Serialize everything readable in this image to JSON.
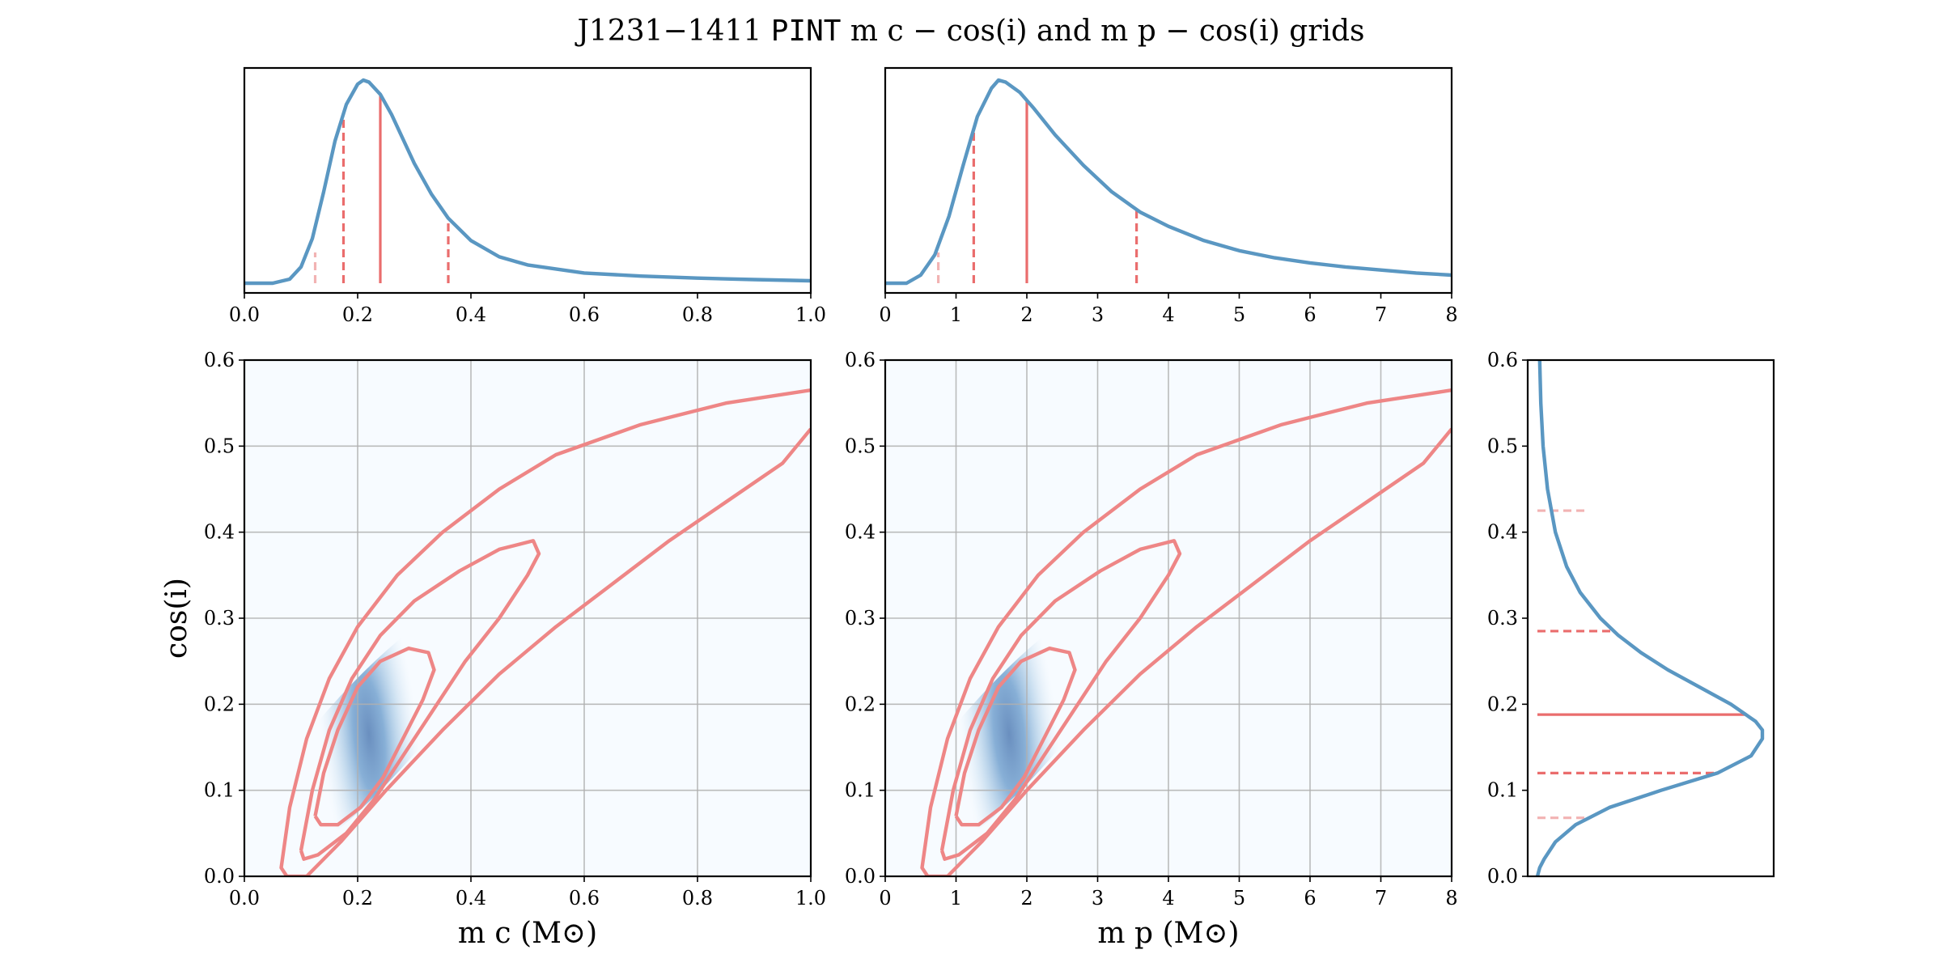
{
  "figure": {
    "title_prefix": "J1231−1411 ",
    "title_mono": "PINT",
    "title_suffix": " m c − cos(i) and m p − cos(i) grids"
  },
  "colors": {
    "pdf_line": "#5a97c2",
    "contour": "#ee8686",
    "quantile": "#ea6d6d",
    "quantile_faint": "#f2b3b3",
    "density_low": "#f7fbff",
    "density_high": "#6a96c4"
  },
  "chart_data": [
    {
      "id": "mc_marginal",
      "type": "line",
      "xlim": [
        0,
        1
      ],
      "xticks": [
        "0.0",
        "0.2",
        "0.4",
        "0.6",
        "0.8",
        "1.0"
      ],
      "x": [
        0.0,
        0.05,
        0.08,
        0.1,
        0.12,
        0.14,
        0.16,
        0.18,
        0.2,
        0.21,
        0.22,
        0.24,
        0.26,
        0.28,
        0.3,
        0.33,
        0.36,
        0.4,
        0.45,
        0.5,
        0.6,
        0.7,
        0.8,
        0.9,
        1.0
      ],
      "y": [
        0.0,
        0.0,
        0.02,
        0.08,
        0.22,
        0.45,
        0.7,
        0.88,
        0.98,
        1.0,
        0.99,
        0.93,
        0.83,
        0.71,
        0.59,
        0.44,
        0.32,
        0.21,
        0.13,
        0.09,
        0.05,
        0.035,
        0.025,
        0.018,
        0.012
      ],
      "quantiles": [
        {
          "value": 0.125,
          "style": "faint"
        },
        {
          "value": 0.175,
          "style": "dashed"
        },
        {
          "value": 0.24,
          "style": "solid"
        },
        {
          "value": 0.36,
          "style": "dashed"
        }
      ]
    },
    {
      "id": "mp_marginal",
      "type": "line",
      "xlim": [
        0,
        8
      ],
      "xticks": [
        "0",
        "1",
        "2",
        "3",
        "4",
        "5",
        "6",
        "7",
        "8"
      ],
      "x": [
        0.0,
        0.3,
        0.5,
        0.7,
        0.9,
        1.1,
        1.3,
        1.5,
        1.6,
        1.7,
        1.9,
        2.1,
        2.4,
        2.8,
        3.2,
        3.6,
        4.0,
        4.5,
        5.0,
        5.5,
        6.0,
        6.5,
        7.0,
        7.5,
        8.0
      ],
      "y": [
        0.0,
        0.0,
        0.04,
        0.14,
        0.33,
        0.58,
        0.82,
        0.96,
        1.0,
        0.99,
        0.94,
        0.86,
        0.73,
        0.58,
        0.45,
        0.35,
        0.28,
        0.21,
        0.16,
        0.125,
        0.1,
        0.08,
        0.065,
        0.05,
        0.04
      ],
      "quantiles": [
        {
          "value": 0.75,
          "style": "faint"
        },
        {
          "value": 1.25,
          "style": "dashed"
        },
        {
          "value": 2.0,
          "style": "solid"
        },
        {
          "value": 3.55,
          "style": "dashed"
        }
      ]
    },
    {
      "id": "mc_cosi_grid",
      "type": "heatmap",
      "xlabel": "m c (M⊙)",
      "ylabel": "cos(i)",
      "xlim": [
        0,
        1
      ],
      "ylim": [
        0,
        0.6
      ],
      "xticks": [
        "0.0",
        "0.2",
        "0.4",
        "0.6",
        "0.8",
        "1.0"
      ],
      "yticks": [
        "0.0",
        "0.1",
        "0.2",
        "0.3",
        "0.4",
        "0.5",
        "0.6"
      ],
      "density_peak": {
        "x": 0.22,
        "y": 0.165
      },
      "contours": [
        [
          [
            0.125,
            0.07
          ],
          [
            0.14,
            0.12
          ],
          [
            0.165,
            0.17
          ],
          [
            0.2,
            0.22
          ],
          [
            0.24,
            0.25
          ],
          [
            0.29,
            0.265
          ],
          [
            0.325,
            0.26
          ],
          [
            0.335,
            0.24
          ],
          [
            0.315,
            0.205
          ],
          [
            0.28,
            0.16
          ],
          [
            0.245,
            0.115
          ],
          [
            0.205,
            0.08
          ],
          [
            0.165,
            0.06
          ],
          [
            0.135,
            0.06
          ],
          [
            0.125,
            0.07
          ]
        ],
        [
          [
            0.1,
            0.03
          ],
          [
            0.12,
            0.1
          ],
          [
            0.15,
            0.17
          ],
          [
            0.19,
            0.23
          ],
          [
            0.24,
            0.28
          ],
          [
            0.3,
            0.32
          ],
          [
            0.38,
            0.355
          ],
          [
            0.45,
            0.38
          ],
          [
            0.51,
            0.39
          ],
          [
            0.52,
            0.375
          ],
          [
            0.5,
            0.35
          ],
          [
            0.45,
            0.3
          ],
          [
            0.39,
            0.25
          ],
          [
            0.33,
            0.19
          ],
          [
            0.28,
            0.14
          ],
          [
            0.23,
            0.09
          ],
          [
            0.18,
            0.05
          ],
          [
            0.13,
            0.025
          ],
          [
            0.105,
            0.02
          ],
          [
            0.1,
            0.03
          ]
        ],
        [
          [
            0.075,
            0.0
          ],
          [
            0.065,
            0.01
          ],
          [
            0.08,
            0.08
          ],
          [
            0.11,
            0.16
          ],
          [
            0.15,
            0.23
          ],
          [
            0.2,
            0.29
          ],
          [
            0.27,
            0.35
          ],
          [
            0.35,
            0.4
          ],
          [
            0.45,
            0.45
          ],
          [
            0.55,
            0.49
          ],
          [
            0.7,
            0.525
          ],
          [
            0.85,
            0.55
          ],
          [
            1.0,
            0.565
          ]
        ],
        [
          [
            0.075,
            0.0
          ],
          [
            0.11,
            0.0
          ],
          [
            0.17,
            0.04
          ],
          [
            0.25,
            0.1
          ],
          [
            0.35,
            0.17
          ],
          [
            0.45,
            0.235
          ],
          [
            0.55,
            0.29
          ],
          [
            0.65,
            0.34
          ],
          [
            0.75,
            0.39
          ],
          [
            0.85,
            0.435
          ],
          [
            0.95,
            0.48
          ],
          [
            1.0,
            0.52
          ]
        ]
      ]
    },
    {
      "id": "mp_cosi_grid",
      "type": "heatmap",
      "xlabel": "m p (M⊙)",
      "xlim": [
        0,
        8
      ],
      "ylim": [
        0,
        0.6
      ],
      "xticks": [
        "0",
        "1",
        "2",
        "3",
        "4",
        "5",
        "6",
        "7",
        "8"
      ],
      "yticks": [
        "0.0",
        "0.1",
        "0.2",
        "0.3",
        "0.4",
        "0.5",
        "0.6"
      ],
      "density_peak": {
        "x": 1.75,
        "y": 0.165
      },
      "contours": [
        [
          [
            1.0,
            0.07
          ],
          [
            1.12,
            0.12
          ],
          [
            1.32,
            0.17
          ],
          [
            1.6,
            0.22
          ],
          [
            1.92,
            0.25
          ],
          [
            2.32,
            0.265
          ],
          [
            2.6,
            0.26
          ],
          [
            2.68,
            0.24
          ],
          [
            2.52,
            0.205
          ],
          [
            2.24,
            0.16
          ],
          [
            1.96,
            0.115
          ],
          [
            1.64,
            0.08
          ],
          [
            1.32,
            0.06
          ],
          [
            1.08,
            0.06
          ],
          [
            1.0,
            0.07
          ]
        ],
        [
          [
            0.8,
            0.03
          ],
          [
            0.96,
            0.1
          ],
          [
            1.2,
            0.17
          ],
          [
            1.52,
            0.23
          ],
          [
            1.92,
            0.28
          ],
          [
            2.4,
            0.32
          ],
          [
            3.04,
            0.355
          ],
          [
            3.6,
            0.38
          ],
          [
            4.08,
            0.39
          ],
          [
            4.16,
            0.375
          ],
          [
            4.0,
            0.35
          ],
          [
            3.6,
            0.3
          ],
          [
            3.12,
            0.25
          ],
          [
            2.64,
            0.19
          ],
          [
            2.24,
            0.14
          ],
          [
            1.84,
            0.09
          ],
          [
            1.44,
            0.05
          ],
          [
            1.04,
            0.025
          ],
          [
            0.84,
            0.02
          ],
          [
            0.8,
            0.03
          ]
        ],
        [
          [
            0.6,
            0.0
          ],
          [
            0.52,
            0.01
          ],
          [
            0.64,
            0.08
          ],
          [
            0.88,
            0.16
          ],
          [
            1.2,
            0.23
          ],
          [
            1.6,
            0.29
          ],
          [
            2.16,
            0.35
          ],
          [
            2.8,
            0.4
          ],
          [
            3.6,
            0.45
          ],
          [
            4.4,
            0.49
          ],
          [
            5.6,
            0.525
          ],
          [
            6.8,
            0.55
          ],
          [
            8.0,
            0.565
          ]
        ],
        [
          [
            0.6,
            0.0
          ],
          [
            0.88,
            0.0
          ],
          [
            1.36,
            0.04
          ],
          [
            2.0,
            0.1
          ],
          [
            2.8,
            0.17
          ],
          [
            3.6,
            0.235
          ],
          [
            4.4,
            0.29
          ],
          [
            5.2,
            0.34
          ],
          [
            6.0,
            0.39
          ],
          [
            6.8,
            0.435
          ],
          [
            7.6,
            0.48
          ],
          [
            8.0,
            0.52
          ]
        ]
      ]
    },
    {
      "id": "cosi_marginal",
      "type": "line",
      "orientation": "horizontal",
      "ylim": [
        0,
        0.6
      ],
      "yticks": [
        "0.0",
        "0.1",
        "0.2",
        "0.3",
        "0.4",
        "0.5",
        "0.6"
      ],
      "y": [
        0.0,
        0.01,
        0.02,
        0.04,
        0.06,
        0.08,
        0.1,
        0.12,
        0.14,
        0.16,
        0.17,
        0.18,
        0.2,
        0.22,
        0.24,
        0.26,
        0.28,
        0.3,
        0.33,
        0.36,
        0.4,
        0.45,
        0.5,
        0.55,
        0.6
      ],
      "density": [
        0.0,
        0.01,
        0.03,
        0.08,
        0.17,
        0.32,
        0.55,
        0.8,
        0.95,
        1.0,
        1.0,
        0.97,
        0.86,
        0.72,
        0.58,
        0.46,
        0.36,
        0.28,
        0.19,
        0.13,
        0.08,
        0.045,
        0.025,
        0.015,
        0.01
      ],
      "quantiles": [
        {
          "value": 0.068,
          "style": "faint"
        },
        {
          "value": 0.12,
          "style": "dashed"
        },
        {
          "value": 0.188,
          "style": "solid"
        },
        {
          "value": 0.285,
          "style": "dashed"
        },
        {
          "value": 0.425,
          "style": "faint"
        }
      ]
    }
  ]
}
